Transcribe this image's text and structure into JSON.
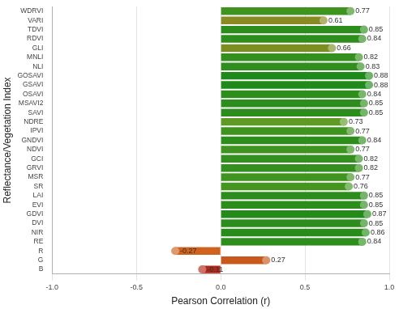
{
  "chart_data": {
    "type": "bar",
    "orientation": "horizontal",
    "x_label": "Pearson Correlation (r)",
    "y_label": "Reflectance/Vegetation Index",
    "categories": [
      "WDRVI",
      "VARI",
      "TDVI",
      "RDVI",
      "GLI",
      "MNLI",
      "NLI",
      "GOSAVI",
      "GSAVI",
      "OSAVI",
      "MSAVI2",
      "SAVI",
      "NDRE",
      "IPVI",
      "GNDVI",
      "NDVI",
      "GCI",
      "GRVI",
      "MSR",
      "SR",
      "LAI",
      "EVI",
      "GDVI",
      "DVI",
      "NIR",
      "RE",
      "R",
      "G",
      "B"
    ],
    "values": [
      0.77,
      0.61,
      0.85,
      0.84,
      0.66,
      0.82,
      0.83,
      0.88,
      0.88,
      0.84,
      0.85,
      0.85,
      0.73,
      0.77,
      0.84,
      0.77,
      0.82,
      0.82,
      0.77,
      0.76,
      0.85,
      0.85,
      0.87,
      0.85,
      0.86,
      0.84,
      -0.27,
      0.27,
      -0.11
    ],
    "colors": [
      "#3f9420",
      "#8a8a22",
      "#2c8c1c",
      "#2e8e1c",
      "#7d8d22",
      "#33901e",
      "#308e1e",
      "#1f8a1a",
      "#1f8a1a",
      "#2e8e1c",
      "#2c8c1c",
      "#2c8c1c",
      "#5f9a22",
      "#3f9420",
      "#2e8e1c",
      "#3f9420",
      "#33901e",
      "#33901e",
      "#3f9420",
      "#44961f",
      "#2c8c1c",
      "#2c8c1c",
      "#248a1a",
      "#2c8c1c",
      "#288c1b",
      "#2e8e1c",
      "#d0621e",
      "#c8581c",
      "#b0281a"
    ],
    "marker": "circle",
    "data_labels": true,
    "grid": true,
    "xlim": [
      -1,
      1
    ],
    "xticks": [
      {
        "value": -1,
        "label": "-1.0"
      },
      {
        "value": -0.5,
        "label": "-0.5"
      },
      {
        "value": 0,
        "label": "0.0"
      },
      {
        "value": 0.5,
        "label": "0.5"
      },
      {
        "value": 1,
        "label": "1.0"
      }
    ]
  }
}
